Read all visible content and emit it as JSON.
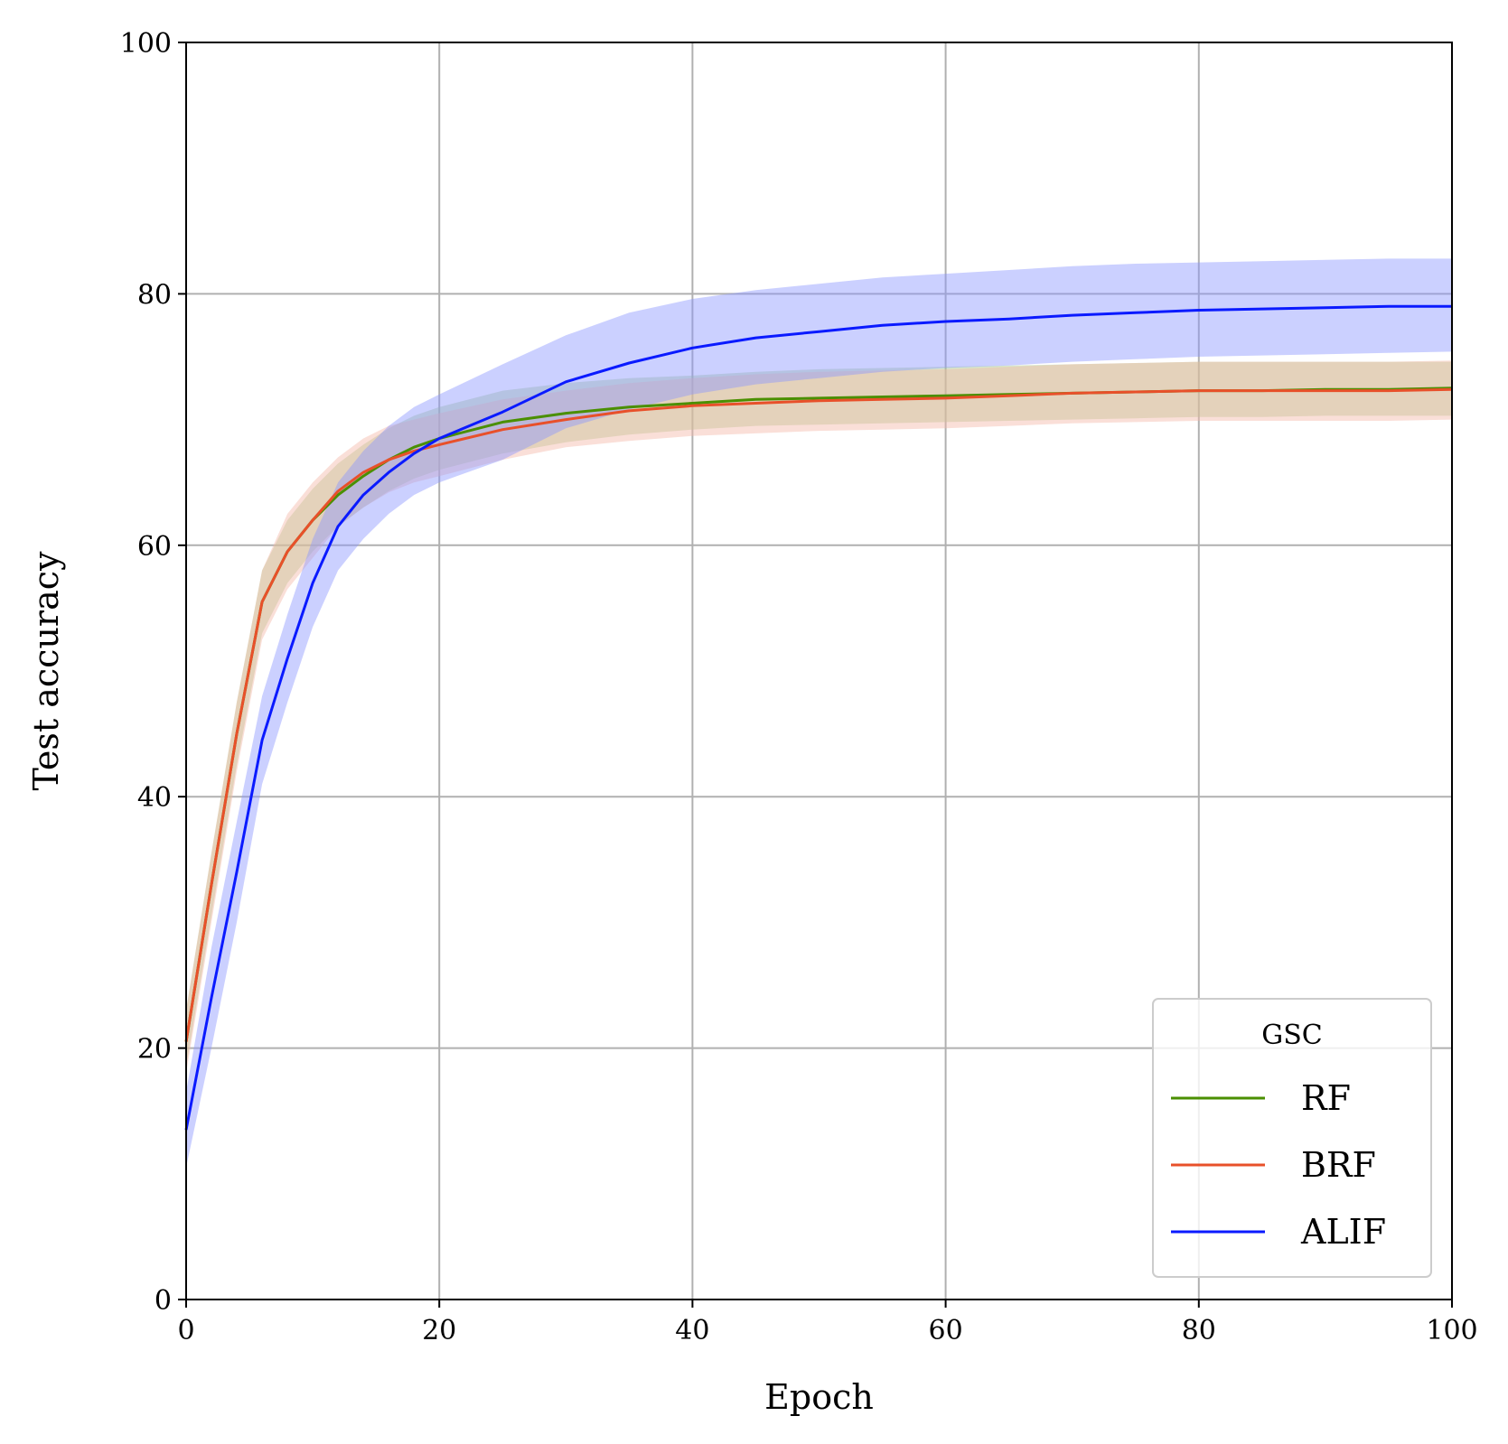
{
  "chart_data": {
    "type": "line",
    "title": "",
    "xlabel": "Epoch",
    "ylabel": "Test accuracy",
    "xlim": [
      0,
      100
    ],
    "ylim": [
      0,
      100
    ],
    "xticks": [
      0,
      20,
      40,
      60,
      80,
      100
    ],
    "yticks": [
      0,
      20,
      40,
      60,
      80,
      100
    ],
    "grid": true,
    "legend": {
      "title": "GSC",
      "placement": "bottom-right"
    },
    "series": [
      {
        "name": "RF",
        "color": "#4a8f00",
        "band_color": "#a8c98a",
        "x": [
          0,
          2,
          4,
          6,
          8,
          10,
          12,
          14,
          16,
          18,
          20,
          25,
          30,
          35,
          40,
          45,
          50,
          55,
          60,
          65,
          70,
          75,
          80,
          85,
          90,
          95,
          100
        ],
        "y": [
          20.5,
          33.0,
          45.0,
          55.5,
          59.5,
          62.0,
          64.0,
          65.5,
          66.8,
          67.8,
          68.5,
          69.8,
          70.5,
          71.0,
          71.3,
          71.6,
          71.7,
          71.8,
          71.9,
          72.0,
          72.1,
          72.2,
          72.3,
          72.3,
          72.4,
          72.4,
          72.5
        ],
        "lower": [
          18.5,
          30.5,
          42.5,
          53.0,
          57.0,
          59.5,
          61.5,
          63.0,
          64.3,
          65.3,
          66.0,
          67.3,
          68.2,
          68.8,
          69.2,
          69.5,
          69.6,
          69.7,
          69.8,
          69.9,
          70.0,
          70.1,
          70.2,
          70.2,
          70.3,
          70.3,
          70.3
        ],
        "upper": [
          23.0,
          35.5,
          47.5,
          58.0,
          62.0,
          64.5,
          66.5,
          68.0,
          69.3,
          70.3,
          71.0,
          72.3,
          72.9,
          73.3,
          73.5,
          73.8,
          74.0,
          74.1,
          74.2,
          74.3,
          74.4,
          74.5,
          74.6,
          74.6,
          74.6,
          74.6,
          74.6
        ]
      },
      {
        "name": "BRF",
        "color": "#e8502a",
        "band_color": "#f5b8a8",
        "x": [
          0,
          2,
          4,
          6,
          8,
          10,
          12,
          14,
          16,
          18,
          20,
          25,
          30,
          35,
          40,
          45,
          50,
          55,
          60,
          65,
          70,
          75,
          80,
          85,
          90,
          95,
          100
        ],
        "y": [
          20.5,
          33.0,
          45.0,
          55.5,
          59.5,
          62.0,
          64.3,
          65.8,
          66.8,
          67.5,
          68.0,
          69.2,
          70.0,
          70.7,
          71.1,
          71.3,
          71.5,
          71.6,
          71.7,
          71.9,
          72.1,
          72.2,
          72.3,
          72.3,
          72.3,
          72.3,
          72.4
        ],
        "lower": [
          18.0,
          30.0,
          42.0,
          52.5,
          56.5,
          59.0,
          61.5,
          63.0,
          64.2,
          65.0,
          65.5,
          66.8,
          67.8,
          68.3,
          68.7,
          68.9,
          69.1,
          69.2,
          69.3,
          69.5,
          69.7,
          69.8,
          69.9,
          69.9,
          69.9,
          69.9,
          70.0
        ],
        "upper": [
          23.0,
          35.5,
          47.5,
          58.0,
          62.5,
          65.0,
          67.0,
          68.5,
          69.5,
          70.0,
          70.5,
          71.6,
          72.3,
          72.9,
          73.3,
          73.6,
          73.8,
          73.9,
          74.0,
          74.2,
          74.4,
          74.5,
          74.6,
          74.6,
          74.6,
          74.6,
          74.7
        ]
      },
      {
        "name": "ALIF",
        "color": "#0a1aff",
        "band_color": "#8c96ff",
        "x": [
          0,
          2,
          4,
          6,
          8,
          10,
          12,
          14,
          16,
          18,
          20,
          25,
          30,
          35,
          40,
          45,
          50,
          55,
          60,
          65,
          70,
          75,
          80,
          85,
          90,
          95,
          100
        ],
        "y": [
          13.5,
          24.0,
          34.0,
          44.5,
          51.0,
          57.0,
          61.5,
          64.0,
          65.8,
          67.3,
          68.5,
          70.6,
          73.0,
          74.5,
          75.7,
          76.5,
          77.0,
          77.5,
          77.8,
          78.0,
          78.3,
          78.5,
          78.7,
          78.8,
          78.9,
          79.0,
          79.0
        ],
        "lower": [
          10.5,
          20.0,
          30.0,
          41.0,
          47.5,
          53.5,
          58.0,
          60.5,
          62.5,
          64.0,
          65.0,
          66.8,
          69.3,
          70.8,
          72.0,
          72.8,
          73.3,
          73.8,
          74.1,
          74.3,
          74.6,
          74.8,
          75.0,
          75.1,
          75.2,
          75.3,
          75.4
        ],
        "upper": [
          16.5,
          28.0,
          38.0,
          48.0,
          54.5,
          60.5,
          65.0,
          67.5,
          69.5,
          71.0,
          72.0,
          74.4,
          76.7,
          78.5,
          79.6,
          80.3,
          80.8,
          81.3,
          81.6,
          81.9,
          82.2,
          82.4,
          82.5,
          82.6,
          82.7,
          82.8,
          82.8
        ]
      }
    ]
  }
}
